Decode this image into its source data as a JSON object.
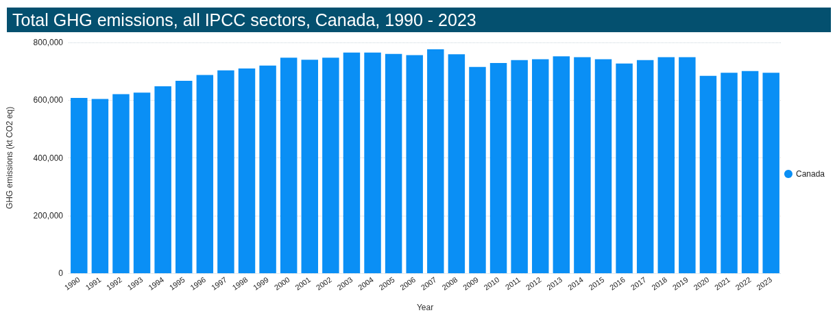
{
  "chart_data": {
    "type": "bar",
    "title": "Total GHG emissions, all IPCC sectors, Canada, 1990 - 2023",
    "xlabel": "Year",
    "ylabel": "GHG emissions (kt CO2 eq)",
    "categories": [
      "1990",
      "1991",
      "1992",
      "1993",
      "1994",
      "1995",
      "1996",
      "1997",
      "1998",
      "1999",
      "2000",
      "2001",
      "2002",
      "2003",
      "2004",
      "2005",
      "2006",
      "2007",
      "2008",
      "2009",
      "2010",
      "2011",
      "2012",
      "2013",
      "2014",
      "2015",
      "2016",
      "2017",
      "2018",
      "2019",
      "2020",
      "2021",
      "2022",
      "2023"
    ],
    "series": [
      {
        "name": "Canada",
        "color": "#0a8ff5",
        "values": [
          608000,
          604000,
          621000,
          626000,
          648000,
          667000,
          687000,
          703000,
          710000,
          720000,
          747000,
          740000,
          747000,
          765000,
          765000,
          760000,
          756000,
          776000,
          759000,
          715000,
          729000,
          739000,
          742000,
          752000,
          749000,
          742000,
          727000,
          739000,
          749000,
          749000,
          684000,
          695000,
          701000,
          695000
        ]
      }
    ],
    "ylim": [
      0,
      800000
    ],
    "yticks": [
      0,
      {
        "value": 200000,
        "label": "200,000"
      },
      {
        "value": 400000,
        "label": "400,000"
      },
      {
        "value": 600000,
        "label": "600,000"
      },
      {
        "value": 800000,
        "label": "800,000"
      }
    ],
    "grid": "y",
    "legend": "right"
  }
}
